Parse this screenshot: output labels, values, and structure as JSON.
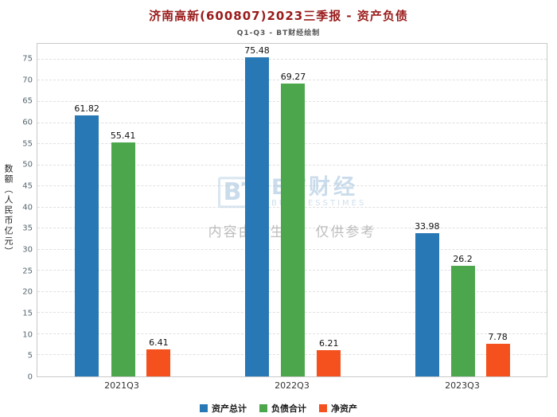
{
  "title": "济南高新(600807)2023三季报 - 资产负债",
  "title_color": "#9a1b1b",
  "subtitle": "Q1-Q3 - BT财经绘制",
  "watermark": {
    "logo_icon": "BT",
    "logo_text": "BT财经",
    "logo_subtext": "BUSINESSTIMES",
    "disclaimer": "内容由AI生成，仅供参考"
  },
  "chart_data": {
    "type": "bar",
    "categories": [
      "2021Q3",
      "2022Q3",
      "2023Q3"
    ],
    "series": [
      {
        "name": "资产总计",
        "color": "#2878b5",
        "values": [
          61.82,
          75.48,
          33.98
        ]
      },
      {
        "name": "负债合计",
        "color": "#4ca64c",
        "values": [
          55.41,
          69.27,
          26.2
        ]
      },
      {
        "name": "净资产",
        "color": "#f4511e",
        "values": [
          6.41,
          6.21,
          7.78
        ]
      }
    ],
    "ylabel": "数额（人民币亿元）",
    "xlabel": "",
    "ylim": [
      0,
      78.75
    ],
    "yticks": [
      0,
      5,
      10,
      15,
      20,
      25,
      30,
      35,
      40,
      45,
      50,
      55,
      60,
      65,
      70,
      75
    ],
    "grid": true,
    "legend_position": "bottom"
  }
}
